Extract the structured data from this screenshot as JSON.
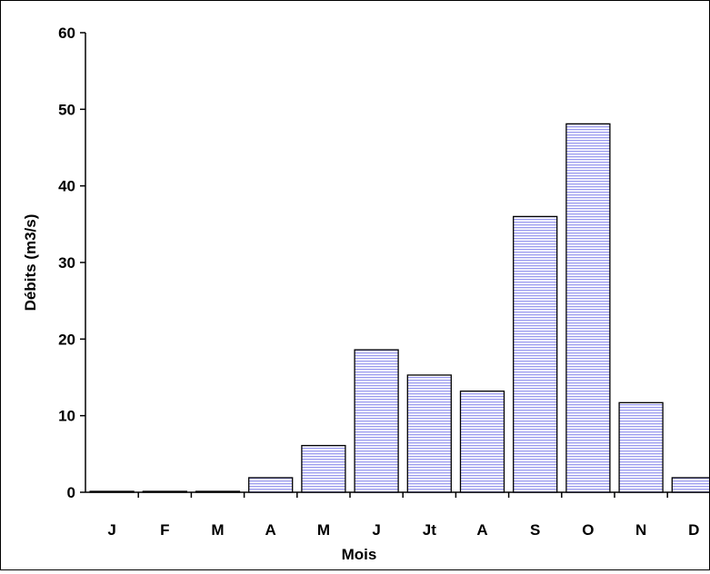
{
  "chart_data": {
    "type": "bar",
    "title": "",
    "xlabel": "Mois",
    "ylabel": "Débits (m3/s)",
    "categories": [
      "J",
      "F",
      "M",
      "A",
      "M",
      "J",
      "Jt",
      "A",
      "S",
      "O",
      "N",
      "D"
    ],
    "values": [
      0.1,
      0.1,
      0.1,
      1.9,
      6.1,
      18.6,
      15.3,
      13.2,
      36.0,
      48.1,
      11.7,
      1.9
    ],
    "ylim": [
      0,
      60
    ],
    "yticks": [
      0,
      10,
      20,
      30,
      40,
      50,
      60
    ],
    "grid": false,
    "legend": "none",
    "colors": {
      "bar_fill": "#ffffff",
      "bar_stripe": "#9999ee",
      "bar_stroke": "#000000",
      "axis": "#000000"
    }
  }
}
